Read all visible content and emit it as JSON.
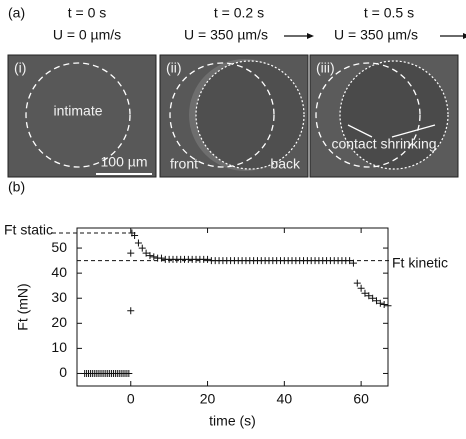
{
  "panel_a": {
    "label": "(a)",
    "scale_bar": "100 µm",
    "frames": [
      {
        "time": "t = 0 s",
        "speed": "U = 0 µm/s",
        "roman": "(i)",
        "annotations": [
          "intimate"
        ]
      },
      {
        "time": "t = 0.2 s",
        "speed": "U = 350 µm/s",
        "roman": "(ii)",
        "annotations": [
          "front",
          "back"
        ]
      },
      {
        "time": "t = 0.5 s",
        "speed": "U = 350 µm/s",
        "roman": "(iii)",
        "annotations": [
          "contact shrinking"
        ]
      }
    ]
  },
  "chart_data": {
    "type": "scatter",
    "panel_label": "(b)",
    "xlabel": "time (s)",
    "ylabel": "Ft (mN)",
    "color": "#111111",
    "xlim": [
      -14,
      67
    ],
    "ylim": [
      -5,
      58
    ],
    "xticks": [
      0,
      20,
      40,
      60
    ],
    "yticks": [
      0,
      10,
      20,
      30,
      40,
      50
    ],
    "reference_lines": [
      {
        "label": "Ft static",
        "value": 56
      },
      {
        "label": "Ft kinetic",
        "value": 45
      }
    ],
    "x": [
      -12,
      -11.5,
      -11,
      -10.5,
      -10,
      -9.5,
      -9,
      -8.5,
      -8,
      -7.5,
      -7,
      -6.5,
      -6,
      -5.5,
      -5,
      -4.5,
      -4,
      -3.5,
      -3,
      -2.5,
      -2,
      -1.5,
      -1,
      -0.5,
      0,
      0,
      0.3,
      1,
      2,
      3,
      4,
      5,
      6,
      7,
      8,
      9,
      10,
      11,
      12,
      13,
      14,
      15,
      16,
      17,
      18,
      19,
      20,
      21,
      22,
      23,
      24,
      25,
      26,
      27,
      28,
      29,
      30,
      31,
      32,
      33,
      34,
      35,
      36,
      37,
      38,
      39,
      40,
      41,
      42,
      43,
      44,
      45,
      46,
      47,
      48,
      49,
      50,
      51,
      52,
      53,
      54,
      55,
      56,
      57,
      58,
      59,
      60,
      61,
      62,
      63,
      64,
      65,
      66,
      67
    ],
    "values": [
      0,
      0,
      0,
      0,
      0,
      0,
      0,
      0,
      0,
      0,
      0,
      0,
      0,
      0,
      0,
      0,
      0,
      0,
      0,
      0,
      0,
      0,
      0,
      0,
      25,
      48,
      56,
      55,
      52,
      50,
      48,
      47,
      46.5,
      46,
      46,
      45.5,
      45.5,
      45.5,
      45.5,
      45.5,
      45.5,
      45.5,
      45.5,
      45.5,
      45.5,
      45.5,
      45.5,
      45,
      45,
      45,
      45,
      45,
      45,
      45,
      45,
      45,
      45,
      45,
      45,
      45,
      45,
      45,
      45,
      45,
      45,
      45,
      45,
      45,
      45,
      45,
      45,
      45,
      45,
      45,
      45,
      45,
      45,
      45,
      45,
      45,
      45,
      45,
      45,
      45,
      44,
      36,
      34,
      32,
      31,
      30,
      29,
      28,
      27.5,
      27
    ]
  }
}
